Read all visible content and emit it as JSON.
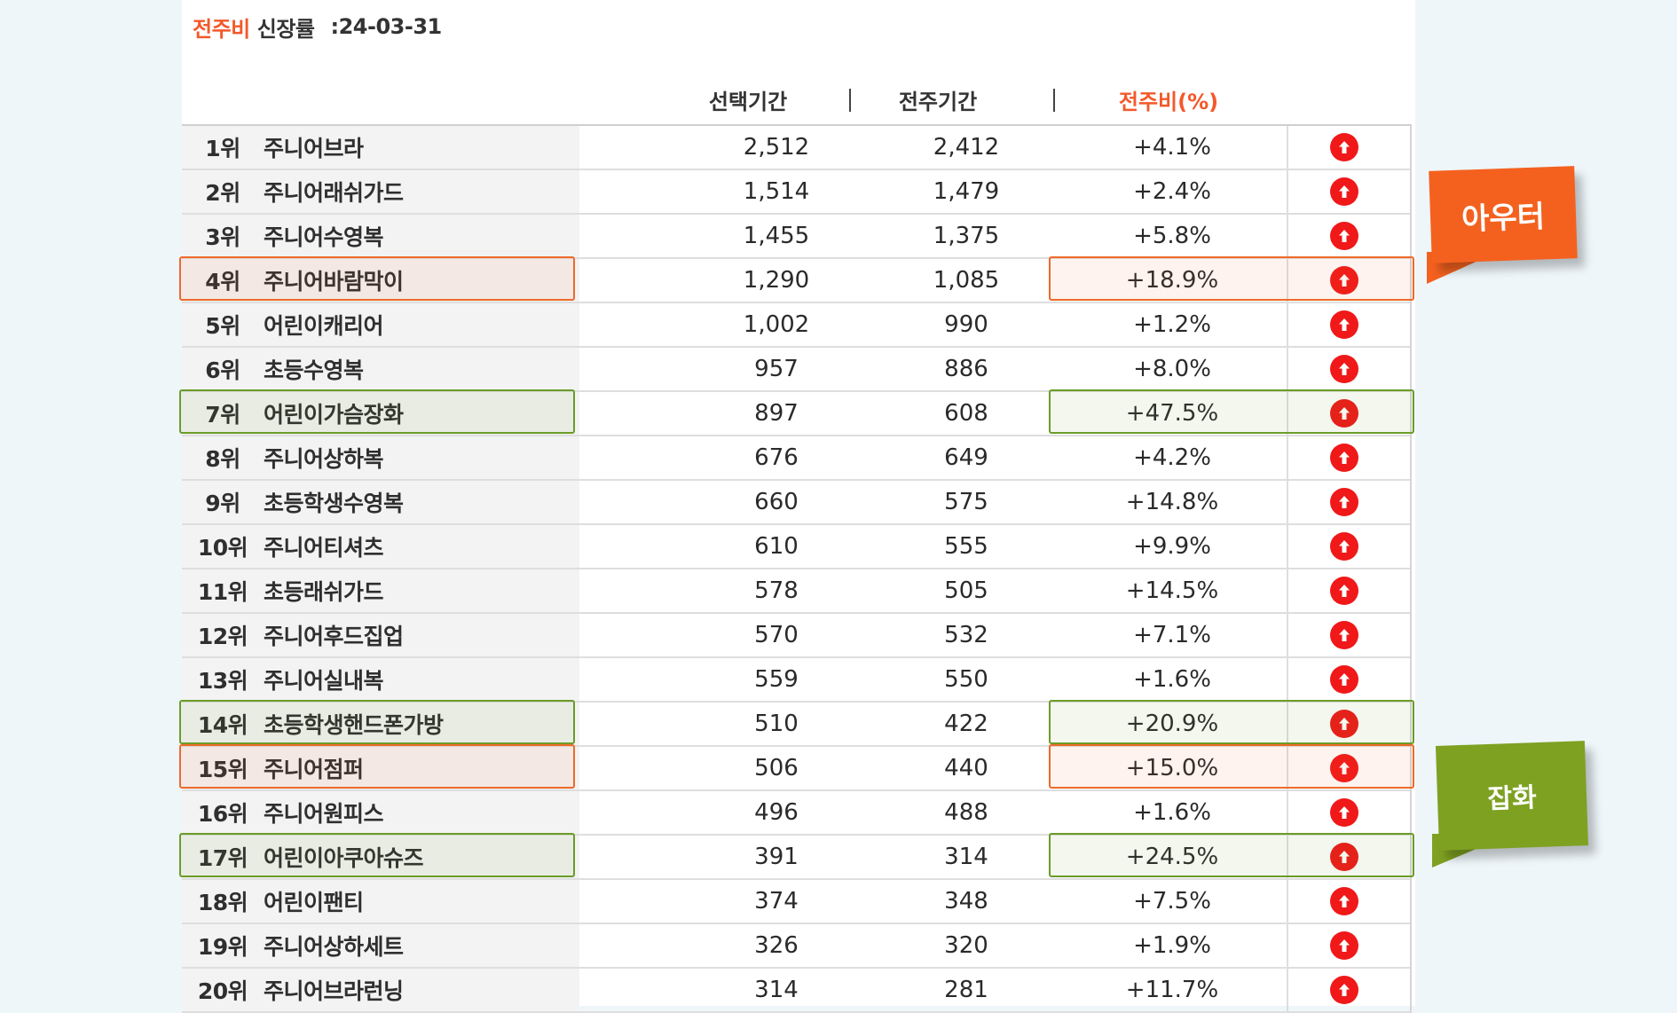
{
  "title": {
    "accent": "전주비",
    "label": "신장률",
    "date": ":24-03-31"
  },
  "header": {
    "col_selected": "선택기간",
    "col_prev": "전주기간",
    "col_ratio": "전주비(%)",
    "sep": "|"
  },
  "colors": {
    "accent": "#f4582a",
    "up_arrow": "#f01818",
    "highlight_outer": "#ee6a2a",
    "highlight_misc": "#6b9c28"
  },
  "rows": [
    {
      "rank": "1위",
      "name": "주니어브라",
      "selected": "2,512",
      "prev": "2,412",
      "ratio": "+4.1%",
      "icon": "up-arrow-icon",
      "highlight": ""
    },
    {
      "rank": "2위",
      "name": "주니어래쉬가드",
      "selected": "1,514",
      "prev": "1,479",
      "ratio": "+2.4%",
      "icon": "up-arrow-icon",
      "highlight": ""
    },
    {
      "rank": "3위",
      "name": "주니어수영복",
      "selected": "1,455",
      "prev": "1,375",
      "ratio": "+5.8%",
      "icon": "up-arrow-icon",
      "highlight": ""
    },
    {
      "rank": "4위",
      "name": "주니어바람막이",
      "selected": "1,290",
      "prev": "1,085",
      "ratio": "+18.9%",
      "icon": "up-arrow-icon",
      "highlight": "orange"
    },
    {
      "rank": "5위",
      "name": "어린이캐리어",
      "selected": "1,002",
      "prev": "990",
      "ratio": "+1.2%",
      "icon": "up-arrow-icon",
      "highlight": ""
    },
    {
      "rank": "6위",
      "name": "초등수영복",
      "selected": "957",
      "prev": "886",
      "ratio": "+8.0%",
      "icon": "up-arrow-icon",
      "highlight": ""
    },
    {
      "rank": "7위",
      "name": "어린이가슴장화",
      "selected": "897",
      "prev": "608",
      "ratio": "+47.5%",
      "icon": "up-arrow-icon",
      "highlight": "green"
    },
    {
      "rank": "8위",
      "name": "주니어상하복",
      "selected": "676",
      "prev": "649",
      "ratio": "+4.2%",
      "icon": "up-arrow-icon",
      "highlight": ""
    },
    {
      "rank": "9위",
      "name": "초등학생수영복",
      "selected": "660",
      "prev": "575",
      "ratio": "+14.8%",
      "icon": "up-arrow-icon",
      "highlight": ""
    },
    {
      "rank": "10위",
      "name": "주니어티셔츠",
      "selected": "610",
      "prev": "555",
      "ratio": "+9.9%",
      "icon": "up-arrow-icon",
      "highlight": ""
    },
    {
      "rank": "11위",
      "name": "초등래쉬가드",
      "selected": "578",
      "prev": "505",
      "ratio": "+14.5%",
      "icon": "up-arrow-icon",
      "highlight": ""
    },
    {
      "rank": "12위",
      "name": "주니어후드집업",
      "selected": "570",
      "prev": "532",
      "ratio": "+7.1%",
      "icon": "up-arrow-icon",
      "highlight": ""
    },
    {
      "rank": "13위",
      "name": "주니어실내복",
      "selected": "559",
      "prev": "550",
      "ratio": "+1.6%",
      "icon": "up-arrow-icon",
      "highlight": ""
    },
    {
      "rank": "14위",
      "name": "초등학생핸드폰가방",
      "selected": "510",
      "prev": "422",
      "ratio": "+20.9%",
      "icon": "up-arrow-icon",
      "highlight": "green"
    },
    {
      "rank": "15위",
      "name": "주니어점퍼",
      "selected": "506",
      "prev": "440",
      "ratio": "+15.0%",
      "icon": "up-arrow-icon",
      "highlight": "orange"
    },
    {
      "rank": "16위",
      "name": "주니어원피스",
      "selected": "496",
      "prev": "488",
      "ratio": "+1.6%",
      "icon": "up-arrow-icon",
      "highlight": ""
    },
    {
      "rank": "17위",
      "name": "어린이아쿠아슈즈",
      "selected": "391",
      "prev": "314",
      "ratio": "+24.5%",
      "icon": "up-arrow-icon",
      "highlight": "green"
    },
    {
      "rank": "18위",
      "name": "어린이팬티",
      "selected": "374",
      "prev": "348",
      "ratio": "+7.5%",
      "icon": "up-arrow-icon",
      "highlight": ""
    },
    {
      "rank": "19위",
      "name": "주니어상하세트",
      "selected": "326",
      "prev": "320",
      "ratio": "+1.9%",
      "icon": "up-arrow-icon",
      "highlight": ""
    },
    {
      "rank": "20위",
      "name": "주니어브라런닝",
      "selected": "314",
      "prev": "281",
      "ratio": "+11.7%",
      "icon": "up-arrow-icon",
      "highlight": ""
    }
  ],
  "callouts": {
    "outer": "아우터",
    "misc": "잡화"
  }
}
